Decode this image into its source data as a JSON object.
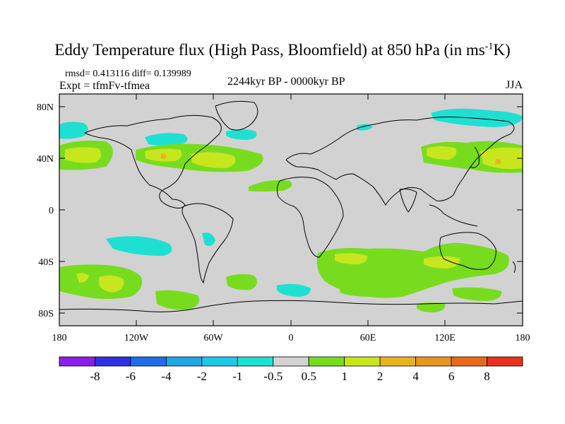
{
  "title": {
    "main": "Eddy Temperature flux (High Pass, Bloomfield) at 850 hPa (in ms",
    "sup": "-1",
    "end": "K)"
  },
  "stats": "rmsd= 0.413116 diff= 0.139989",
  "experiment": "Expt = tfmFv-tfmea",
  "period": "2244kyr BP - 0000kyr BP",
  "season": "JJA",
  "axes": {
    "lat_labels": [
      "80N",
      "40N",
      "0",
      "40S",
      "80S"
    ],
    "lon_labels": [
      "180",
      "120W",
      "60W",
      "0",
      "60E",
      "120E",
      "180"
    ]
  },
  "colorbar": {
    "labels": [
      "-8",
      "-6",
      "-4",
      "-2",
      "-1",
      "-0.5",
      "0.5",
      "1",
      "2",
      "4",
      "6",
      "8"
    ],
    "colors": [
      "#8a20e6",
      "#3030e0",
      "#1e6ee8",
      "#1ea6e6",
      "#1ec8e8",
      "#1ee0d2",
      "#d2d2d2",
      "#78dc1e",
      "#c8e61e",
      "#e6b41e",
      "#e6961e",
      "#e66a1e",
      "#e6321e"
    ]
  },
  "colors": {
    "land_background": "#d2d2d2",
    "coast": "#000000"
  }
}
